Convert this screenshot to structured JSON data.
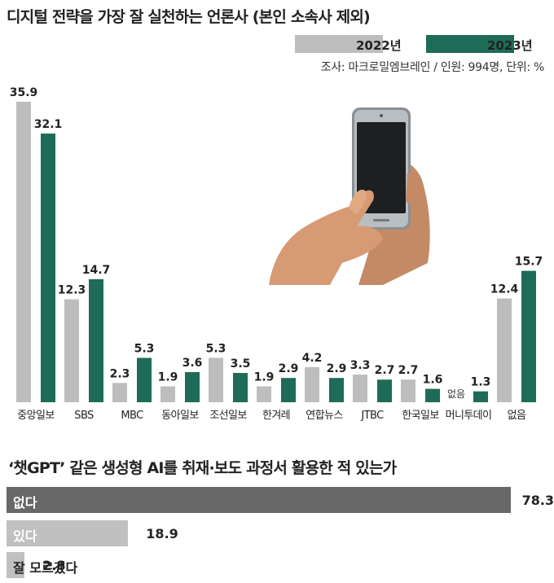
{
  "colors": {
    "y2022": "#bdbdbd",
    "y2023": "#1e6b58",
    "hbar_dark": "#686868",
    "hbar_light": "#c0c0c0"
  },
  "chart_data": [
    {
      "type": "bar",
      "title": "디지털 전략을 가장 잘 실천하는 언론사 (본인 소속사 제외)",
      "source": "조사: 마크로밀엠브레인 / 인원: 994명, 단위: %",
      "legend_position": "top-right",
      "categories": [
        "중앙일보",
        "SBS",
        "MBC",
        "동아일보",
        "조선일보",
        "한겨레",
        "연합뉴스",
        "JTBC",
        "한국일보",
        "머니투데이",
        "없음"
      ],
      "series": [
        {
          "name": "2022년",
          "values": [
            35.9,
            12.3,
            2.3,
            1.9,
            5.3,
            1.9,
            4.2,
            3.3,
            2.7,
            null,
            12.4
          ]
        },
        {
          "name": "2023년",
          "values": [
            32.1,
            14.7,
            5.3,
            3.6,
            3.5,
            2.9,
            2.9,
            2.7,
            1.6,
            1.3,
            15.7
          ]
        }
      ],
      "annotations": [
        {
          "category": "머니투데이",
          "series": "2022년",
          "text": "없음"
        }
      ],
      "ylim": [
        0,
        36
      ]
    },
    {
      "type": "bar",
      "orientation": "horizontal",
      "title": "‘챗GPT’ 같은 생성형 AI를 취재·보도 과정서 활용한 적 있는가",
      "categories": [
        "없다",
        "있다",
        "잘 모르겠다"
      ],
      "values": [
        78.3,
        18.9,
        2.8
      ],
      "xlim": [
        0,
        100
      ]
    }
  ],
  "icons": {
    "illustration": "smartphone-in-hands-icon"
  }
}
